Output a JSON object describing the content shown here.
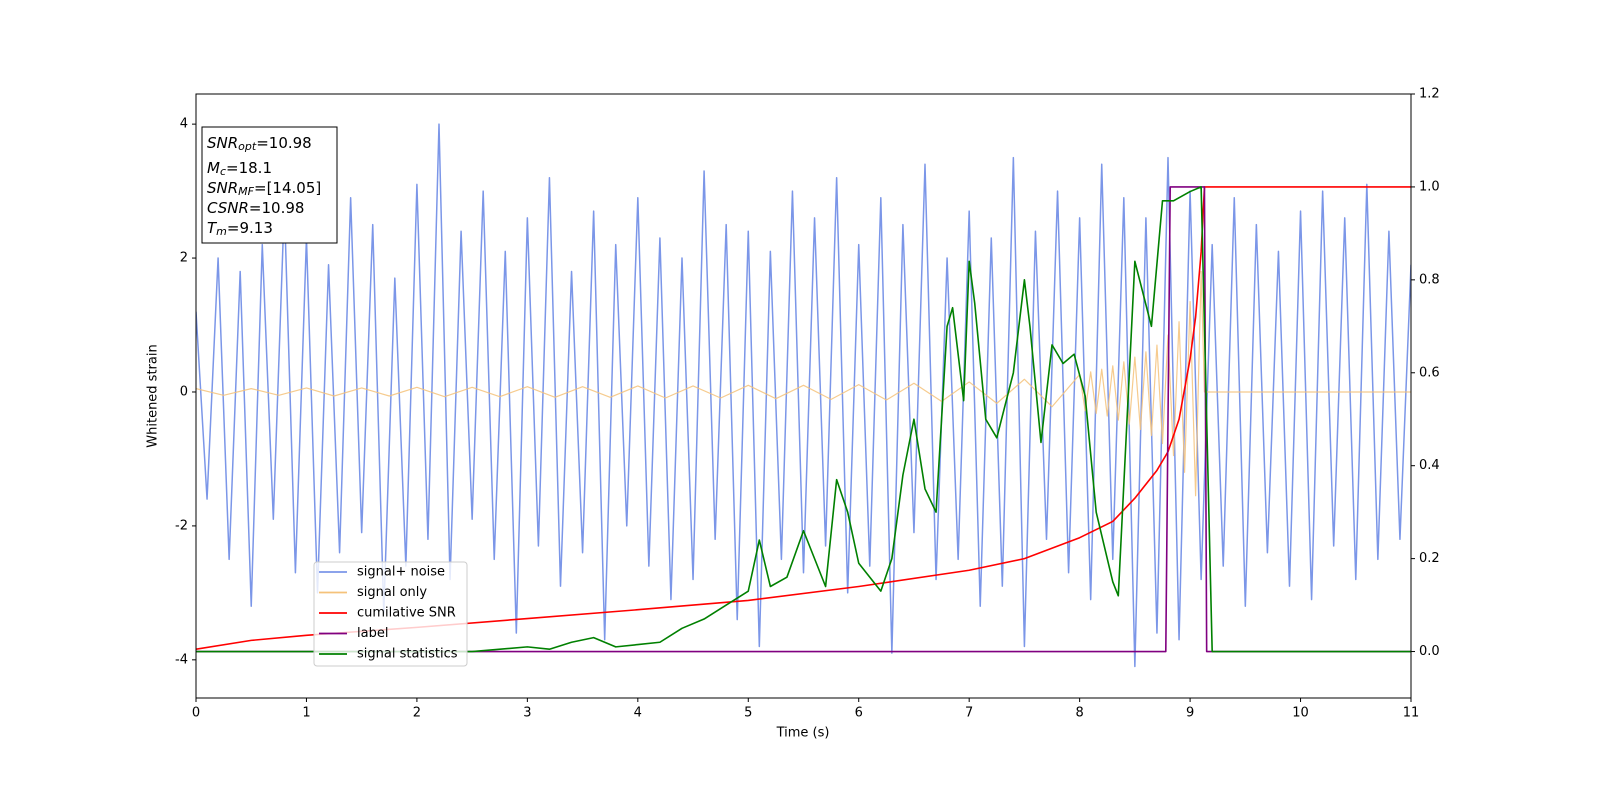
{
  "chart_data": {
    "type": "line",
    "xlabel": "Time (s)",
    "ylabel": "Whitened strain",
    "xlim": [
      0,
      11
    ],
    "xticks": [
      0,
      1,
      2,
      3,
      4,
      5,
      6,
      7,
      8,
      9,
      10,
      11
    ],
    "ylim": [
      -4.57,
      4.45
    ],
    "yticks": [
      -4,
      -2,
      0,
      2,
      4
    ],
    "y2lim": [
      -0.1,
      1.2
    ],
    "y2ticks": [
      {
        "value": 0,
        "label": "0.0"
      },
      0.2,
      0.4,
      0.6,
      0.8,
      {
        "value": 1,
        "label": "1.0"
      },
      1.2
    ],
    "legend": "lower left",
    "annotations": [
      {
        "symbol": "SNR",
        "subscript": "opt",
        "text": "=10.98"
      },
      {
        "symbol": "M",
        "subscript": "c",
        "text": "=18.1"
      },
      {
        "symbol": "SNR",
        "subscript": "MF",
        "text": "=[14.05]"
      },
      {
        "symbol": "CSNR",
        "text": "=10.98"
      },
      {
        "symbol": "T",
        "subscript": "m",
        "text": "=9.13"
      }
    ],
    "series": [
      {
        "name": "signal+ noise",
        "color": "#7b96e8",
        "x": [
          0,
          0.1,
          0.2,
          0.3,
          0.4,
          0.5,
          0.6,
          0.7,
          0.8,
          0.9,
          1,
          1.1,
          1.2,
          1.3,
          1.4,
          1.5,
          1.6,
          1.7,
          1.8,
          1.9,
          2,
          2.1,
          2.2,
          2.3,
          2.4,
          2.5,
          2.6,
          2.7,
          2.8,
          2.9,
          3,
          3.1,
          3.2,
          3.3,
          3.4,
          3.5,
          3.6,
          3.7,
          3.8,
          3.9,
          4,
          4.1,
          4.2,
          4.3,
          4.4,
          4.5,
          4.6,
          4.7,
          4.8,
          4.9,
          5,
          5.1,
          5.2,
          5.3,
          5.4,
          5.5,
          5.6,
          5.7,
          5.8,
          5.9,
          6,
          6.1,
          6.2,
          6.3,
          6.4,
          6.5,
          6.6,
          6.7,
          6.8,
          6.9,
          7,
          7.1,
          7.2,
          7.3,
          7.4,
          7.5,
          7.6,
          7.7,
          7.8,
          7.9,
          8,
          8.1,
          8.2,
          8.3,
          8.4,
          8.5,
          8.6,
          8.7,
          8.8,
          8.9,
          9,
          9.1,
          9.2,
          9.3,
          9.4,
          9.5,
          9.6,
          9.7,
          9.8,
          9.9,
          10,
          10.1,
          10.2,
          10.3,
          10.4,
          10.5,
          10.6,
          10.7,
          10.8,
          10.9,
          11
        ],
        "values": [
          1.2,
          -1.6,
          2.0,
          -2.5,
          1.8,
          -3.2,
          2.2,
          -1.9,
          2.8,
          -2.7,
          2.3,
          -3.0,
          1.9,
          -2.4,
          2.9,
          -2.1,
          2.5,
          -3.3,
          1.7,
          -2.6,
          3.1,
          -2.2,
          4.0,
          -2.8,
          2.4,
          -1.9,
          3.0,
          -2.5,
          2.1,
          -3.6,
          2.6,
          -2.3,
          3.2,
          -2.9,
          1.8,
          -2.4,
          2.7,
          -3.7,
          2.2,
          -2.0,
          2.9,
          -2.6,
          2.3,
          -3.1,
          2.0,
          -2.8,
          3.3,
          -2.2,
          2.5,
          -3.4,
          2.4,
          -3.8,
          2.1,
          -2.5,
          3.0,
          -2.7,
          2.6,
          -2.3,
          3.2,
          -3.0,
          2.2,
          -2.6,
          2.9,
          -3.9,
          2.5,
          -2.1,
          3.4,
          -2.8,
          2.0,
          -2.5,
          2.7,
          -3.2,
          2.3,
          -2.9,
          3.5,
          -3.8,
          2.4,
          -2.2,
          3.0,
          -2.7,
          2.6,
          -3.1,
          3.4,
          -2.5,
          2.9,
          -4.1,
          2.6,
          -3.6,
          3.5,
          -3.7,
          3.0,
          -2.8,
          2.2,
          -2.6,
          2.9,
          -3.2,
          2.5,
          -2.4,
          2.1,
          -2.9,
          2.7,
          -3.1,
          3.0,
          -2.3,
          2.6,
          -2.8,
          3.1,
          -2.5,
          2.4,
          -2.2,
          1.9
        ]
      },
      {
        "name": "signal only",
        "color": "#f5c27a",
        "x": [
          0,
          0.25,
          0.5,
          0.75,
          1,
          1.25,
          1.5,
          1.75,
          2,
          2.25,
          2.5,
          2.75,
          3,
          3.25,
          3.5,
          3.75,
          4,
          4.25,
          4.5,
          4.75,
          5,
          5.25,
          5.5,
          5.75,
          6,
          6.25,
          6.5,
          6.75,
          7,
          7.25,
          7.5,
          7.75,
          8,
          8.05,
          8.1,
          8.15,
          8.2,
          8.25,
          8.3,
          8.35,
          8.4,
          8.45,
          8.5,
          8.55,
          8.6,
          8.65,
          8.7,
          8.75,
          8.8,
          8.85,
          8.9,
          8.95,
          9,
          9.05,
          9.1,
          9.13,
          11
        ],
        "values": [
          0.05,
          -0.05,
          0.05,
          -0.05,
          0.06,
          -0.06,
          0.06,
          -0.06,
          0.07,
          -0.07,
          0.07,
          -0.07,
          0.08,
          -0.08,
          0.08,
          -0.08,
          0.09,
          -0.09,
          0.09,
          -0.09,
          0.1,
          -0.1,
          0.1,
          -0.11,
          0.11,
          -0.12,
          0.13,
          -0.14,
          0.15,
          -0.17,
          0.19,
          -0.22,
          0.26,
          -0.28,
          0.3,
          -0.32,
          0.34,
          -0.36,
          0.39,
          -0.42,
          0.45,
          -0.48,
          0.52,
          -0.56,
          0.6,
          -0.65,
          0.7,
          -0.77,
          0.85,
          -0.95,
          1.05,
          -1.2,
          1.35,
          -1.55,
          1.8,
          0,
          0
        ]
      },
      {
        "name": "cumilative SNR",
        "color": "#ff0000",
        "axis": "y2",
        "x": [
          0,
          0.5,
          1,
          2,
          3,
          4,
          5,
          6,
          7,
          7.5,
          8,
          8.3,
          8.5,
          8.7,
          8.8,
          8.9,
          9,
          9.05,
          9.1,
          9.13,
          11
        ],
        "values": [
          0.005,
          0.024,
          0.035,
          0.052,
          0.071,
          0.09,
          0.11,
          0.14,
          0.175,
          0.2,
          0.245,
          0.28,
          0.33,
          0.39,
          0.43,
          0.5,
          0.63,
          0.72,
          0.86,
          1.0,
          1.0
        ]
      },
      {
        "name": "label",
        "color": "#800080",
        "axis": "y2",
        "x": [
          0,
          8.78,
          8.82,
          9.13,
          9.15,
          11
        ],
        "values": [
          0,
          0,
          1,
          1,
          0,
          0
        ]
      },
      {
        "name": "signal statistics",
        "color": "#008000",
        "axis": "y2",
        "x": [
          0,
          2,
          2.5,
          3,
          3.2,
          3.4,
          3.6,
          3.8,
          4,
          4.2,
          4.4,
          4.6,
          4.8,
          5,
          5.1,
          5.2,
          5.35,
          5.5,
          5.7,
          5.8,
          5.9,
          6,
          6.2,
          6.3,
          6.4,
          6.5,
          6.6,
          6.7,
          6.8,
          6.85,
          6.95,
          7,
          7.05,
          7.15,
          7.25,
          7.4,
          7.5,
          7.55,
          7.65,
          7.75,
          7.85,
          7.95,
          8.05,
          8.15,
          8.3,
          8.35,
          8.5,
          8.65,
          8.75,
          8.85,
          9,
          9.1,
          9.15,
          9.2,
          11
        ],
        "values": [
          0,
          0,
          0,
          0.01,
          0.005,
          0.02,
          0.03,
          0.01,
          0.015,
          0.02,
          0.05,
          0.07,
          0.1,
          0.13,
          0.24,
          0.14,
          0.16,
          0.26,
          0.14,
          0.37,
          0.3,
          0.19,
          0.13,
          0.2,
          0.38,
          0.5,
          0.35,
          0.3,
          0.7,
          0.74,
          0.54,
          0.84,
          0.75,
          0.5,
          0.46,
          0.6,
          0.8,
          0.7,
          0.45,
          0.66,
          0.62,
          0.64,
          0.55,
          0.3,
          0.15,
          0.12,
          0.84,
          0.7,
          0.97,
          0.97,
          0.99,
          1.0,
          0.5,
          0,
          0
        ]
      }
    ]
  }
}
